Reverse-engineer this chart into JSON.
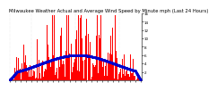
{
  "title": "Milwaukee Weather Actual and Average Wind Speed by Minute mph (Last 24 Hours)",
  "n_points": 1440,
  "ylim": [
    0,
    16
  ],
  "yticks": [
    2,
    4,
    6,
    8,
    10,
    12,
    14,
    16
  ],
  "bar_color": "#FF0000",
  "dot_color": "#0000CD",
  "background_color": "#FFFFFF",
  "grid_color": "#CCCCCC",
  "title_fontsize": 3.8,
  "tick_fontsize": 3.0,
  "n_xticks": 25
}
